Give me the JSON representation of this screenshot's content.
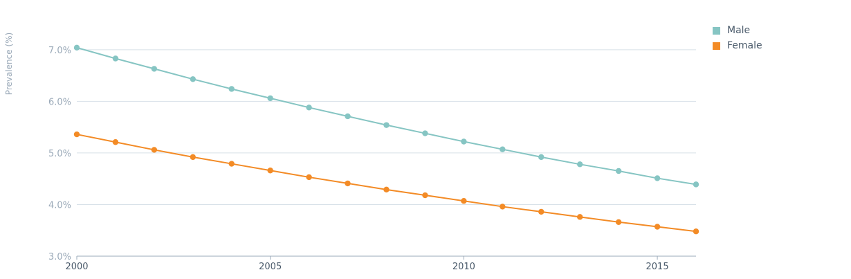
{
  "chart_data": {
    "type": "line",
    "ylabel": "Prevalence (%)",
    "xlabel": "",
    "x": [
      2000,
      2001,
      2002,
      2003,
      2004,
      2005,
      2006,
      2007,
      2008,
      2009,
      2010,
      2011,
      2012,
      2013,
      2014,
      2015,
      2016
    ],
    "xlim": [
      2000,
      2016
    ],
    "ylim": [
      3.0,
      7.4
    ],
    "x_ticks": [
      2000,
      2005,
      2010,
      2015
    ],
    "x_tick_labels": [
      "2000",
      "2005",
      "2010",
      "2015"
    ],
    "y_ticks": [
      3.0,
      4.0,
      5.0,
      6.0,
      7.0
    ],
    "y_tick_labels": [
      "3.0%",
      "4.0%",
      "5.0%",
      "6.0%",
      "7.0%"
    ],
    "grid": true,
    "legend_position": "top-right",
    "series": [
      {
        "name": "Male",
        "color": "#86c5c3",
        "values": [
          7.04,
          6.83,
          6.63,
          6.43,
          6.24,
          6.06,
          5.88,
          5.71,
          5.54,
          5.38,
          5.22,
          5.07,
          4.92,
          4.78,
          4.65,
          4.51,
          4.39
        ]
      },
      {
        "name": "Female",
        "color": "#f38b26",
        "values": [
          5.36,
          5.21,
          5.06,
          4.92,
          4.79,
          4.66,
          4.53,
          4.41,
          4.29,
          4.18,
          4.07,
          3.96,
          3.86,
          3.76,
          3.66,
          3.57,
          3.48
        ]
      }
    ]
  }
}
